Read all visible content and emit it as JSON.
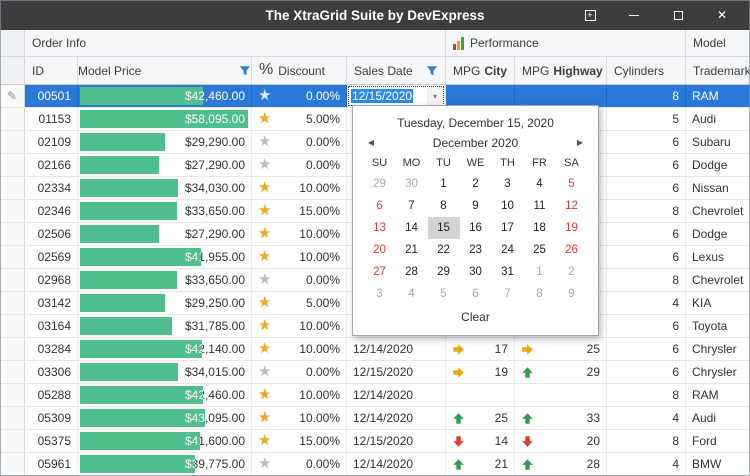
{
  "window": {
    "title": "The XtraGrid Suite by DevExpress"
  },
  "icons": {
    "pencil": "✎",
    "star": "★",
    "dropdown": "▾",
    "close": "✕",
    "plus": "+",
    "nav_left": "◀",
    "nav_right": "▶"
  },
  "colors": {
    "titlebar": "#3d3d3d",
    "sel": "#2a79d8",
    "bar": "#4fc08d",
    "up": "#2e9e4e",
    "down": "#e03a2f",
    "flat": "#f2a60d",
    "star": "#f6a821",
    "graystar": "#bcbcbc",
    "wknd": "#dd3b38",
    "dim": "#a9a9a9"
  },
  "bands": [
    {
      "label": "Order Info"
    },
    {
      "label": "Performance"
    },
    {
      "label": "Model"
    }
  ],
  "columns": {
    "id": "ID",
    "price": "Model Price",
    "discount_prefix": "%",
    "discount": "Discount",
    "date": "Sales Date",
    "mpg_prefix": "MPG",
    "city": "City",
    "hwy": "Highway",
    "cylinders": "Cylinders",
    "trademark": "Trademark"
  },
  "editor": {
    "value": "12/15/2020"
  },
  "calendar": {
    "selected_title": "Tuesday, December 15, 2020",
    "month": "December 2020",
    "weekdays": [
      "SU",
      "MO",
      "TU",
      "WE",
      "TH",
      "FR",
      "SA"
    ],
    "weeks": [
      [
        {
          "d": "29",
          "cls": "dim"
        },
        {
          "d": "30",
          "cls": "dim"
        },
        {
          "d": "1",
          "cls": ""
        },
        {
          "d": "2",
          "cls": ""
        },
        {
          "d": "3",
          "cls": ""
        },
        {
          "d": "4",
          "cls": ""
        },
        {
          "d": "5",
          "cls": "wknd"
        }
      ],
      [
        {
          "d": "6",
          "cls": "wknd"
        },
        {
          "d": "7",
          "cls": ""
        },
        {
          "d": "8",
          "cls": ""
        },
        {
          "d": "9",
          "cls": ""
        },
        {
          "d": "10",
          "cls": ""
        },
        {
          "d": "11",
          "cls": ""
        },
        {
          "d": "12",
          "cls": "wknd"
        }
      ],
      [
        {
          "d": "13",
          "cls": "wknd"
        },
        {
          "d": "14",
          "cls": ""
        },
        {
          "d": "15",
          "cls": "sel"
        },
        {
          "d": "16",
          "cls": ""
        },
        {
          "d": "17",
          "cls": ""
        },
        {
          "d": "18",
          "cls": ""
        },
        {
          "d": "19",
          "cls": "wknd"
        }
      ],
      [
        {
          "d": "20",
          "cls": "wknd"
        },
        {
          "d": "21",
          "cls": ""
        },
        {
          "d": "22",
          "cls": ""
        },
        {
          "d": "23",
          "cls": ""
        },
        {
          "d": "24",
          "cls": ""
        },
        {
          "d": "25",
          "cls": ""
        },
        {
          "d": "26",
          "cls": "wknd"
        }
      ],
      [
        {
          "d": "27",
          "cls": "wknd"
        },
        {
          "d": "28",
          "cls": ""
        },
        {
          "d": "29",
          "cls": ""
        },
        {
          "d": "30",
          "cls": ""
        },
        {
          "d": "31",
          "cls": ""
        },
        {
          "d": "1",
          "cls": "dim"
        },
        {
          "d": "2",
          "cls": "dim"
        }
      ],
      [
        {
          "d": "3",
          "cls": "dim"
        },
        {
          "d": "4",
          "cls": "dim"
        },
        {
          "d": "5",
          "cls": "dim"
        },
        {
          "d": "6",
          "cls": "dim"
        },
        {
          "d": "7",
          "cls": "dim"
        },
        {
          "d": "8",
          "cls": "dim"
        },
        {
          "d": "9",
          "cls": "dim"
        }
      ]
    ],
    "clear_label": "Clear"
  },
  "rows": [
    {
      "id": "00501",
      "price": "$42,460.00",
      "bar_pct": 73.1,
      "discount": "0.00%",
      "star_pct": 0,
      "date": "",
      "mpg_city": null,
      "mpg_highway": null,
      "cylinders": "8",
      "trademark": "RAM",
      "selected": true,
      "editing": true
    },
    {
      "id": "01153",
      "price": "$58,095.00",
      "bar_pct": 100,
      "discount": "5.00%",
      "star_pct": 50,
      "date": "",
      "mpg_city": null,
      "mpg_highway": null,
      "cylinders": "5",
      "trademark": "Audi"
    },
    {
      "id": "02109",
      "price": "$29,290.00",
      "bar_pct": 50.4,
      "discount": "0.00%",
      "star_pct": 0,
      "date": "",
      "mpg_city": null,
      "mpg_highway": null,
      "cylinders": "6",
      "trademark": "Subaru"
    },
    {
      "id": "02166",
      "price": "$27,290.00",
      "bar_pct": 47.0,
      "discount": "0.00%",
      "star_pct": 0,
      "date": "",
      "mpg_city": null,
      "mpg_highway": null,
      "cylinders": "6",
      "trademark": "Dodge"
    },
    {
      "id": "02334",
      "price": "$34,030.00",
      "bar_pct": 58.6,
      "discount": "10.00%",
      "star_pct": 50,
      "date": "",
      "mpg_city": null,
      "mpg_highway": null,
      "cylinders": "6",
      "trademark": "Nissan"
    },
    {
      "id": "02346",
      "price": "$33,650.00",
      "bar_pct": 57.9,
      "discount": "15.00%",
      "star_pct": 100,
      "date": "",
      "mpg_city": null,
      "mpg_highway": null,
      "cylinders": "8",
      "trademark": "Chevrolet"
    },
    {
      "id": "02506",
      "price": "$27,290.00",
      "bar_pct": 47.0,
      "discount": "10.00%",
      "star_pct": 50,
      "date": "",
      "mpg_city": null,
      "mpg_highway": null,
      "cylinders": "6",
      "trademark": "Dodge"
    },
    {
      "id": "02569",
      "price": "$41,955.00",
      "bar_pct": 72.2,
      "discount": "10.00%",
      "star_pct": 50,
      "date": "",
      "mpg_city": null,
      "mpg_highway": null,
      "cylinders": "6",
      "trademark": "Lexus"
    },
    {
      "id": "02968",
      "price": "$33,650.00",
      "bar_pct": 57.9,
      "discount": "0.00%",
      "star_pct": 0,
      "date": "",
      "mpg_city": null,
      "mpg_highway": null,
      "cylinders": "8",
      "trademark": "Chevrolet"
    },
    {
      "id": "03142",
      "price": "$29,250.00",
      "bar_pct": 50.3,
      "discount": "5.00%",
      "star_pct": 50,
      "date": "",
      "mpg_city": null,
      "mpg_highway": null,
      "cylinders": "4",
      "trademark": "KIA"
    },
    {
      "id": "03164",
      "price": "$31,785.00",
      "bar_pct": 54.7,
      "discount": "10.00%",
      "star_pct": 50,
      "date": "",
      "mpg_city": null,
      "mpg_highway": null,
      "cylinders": "6",
      "trademark": "Toyota"
    },
    {
      "id": "03284",
      "price": "$42,140.00",
      "bar_pct": 72.5,
      "discount": "10.00%",
      "star_pct": 50,
      "date": "12/14/2020",
      "mpg_city": {
        "dir": "right",
        "val": "17"
      },
      "mpg_highway": {
        "dir": "right",
        "val": "25"
      },
      "cylinders": "6",
      "trademark": "Chrysler"
    },
    {
      "id": "03306",
      "price": "$34,015.00",
      "bar_pct": 58.6,
      "discount": "0.00%",
      "star_pct": 0,
      "date": "12/15/2020",
      "mpg_city": {
        "dir": "right",
        "val": "19"
      },
      "mpg_highway": {
        "dir": "up",
        "val": "29"
      },
      "cylinders": "6",
      "trademark": "Chrysler"
    },
    {
      "id": "05288",
      "price": "$42,460.00",
      "bar_pct": 73.1,
      "discount": "10.00%",
      "star_pct": 50,
      "date": "12/14/2020",
      "mpg_city": null,
      "mpg_highway": null,
      "cylinders": "8",
      "trademark": "RAM"
    },
    {
      "id": "05309",
      "price": "$43,095.00",
      "bar_pct": 74.2,
      "discount": "10.00%",
      "star_pct": 50,
      "date": "12/14/2020",
      "mpg_city": {
        "dir": "up",
        "val": "25"
      },
      "mpg_highway": {
        "dir": "up",
        "val": "33"
      },
      "cylinders": "4",
      "trademark": "Audi"
    },
    {
      "id": "05375",
      "price": "$41,600.00",
      "bar_pct": 71.6,
      "discount": "15.00%",
      "star_pct": 100,
      "date": "12/15/2020",
      "mpg_city": {
        "dir": "down",
        "val": "14"
      },
      "mpg_highway": {
        "dir": "down",
        "val": "20"
      },
      "cylinders": "8",
      "trademark": "Ford"
    },
    {
      "id": "05961",
      "price": "$39,775.00",
      "bar_pct": 68.5,
      "discount": "0.00%",
      "star_pct": 0,
      "date": "12/14/2020",
      "mpg_city": {
        "dir": "up",
        "val": "21"
      },
      "mpg_highway": {
        "dir": "up",
        "val": "28"
      },
      "cylinders": "4",
      "trademark": "BMW"
    }
  ]
}
